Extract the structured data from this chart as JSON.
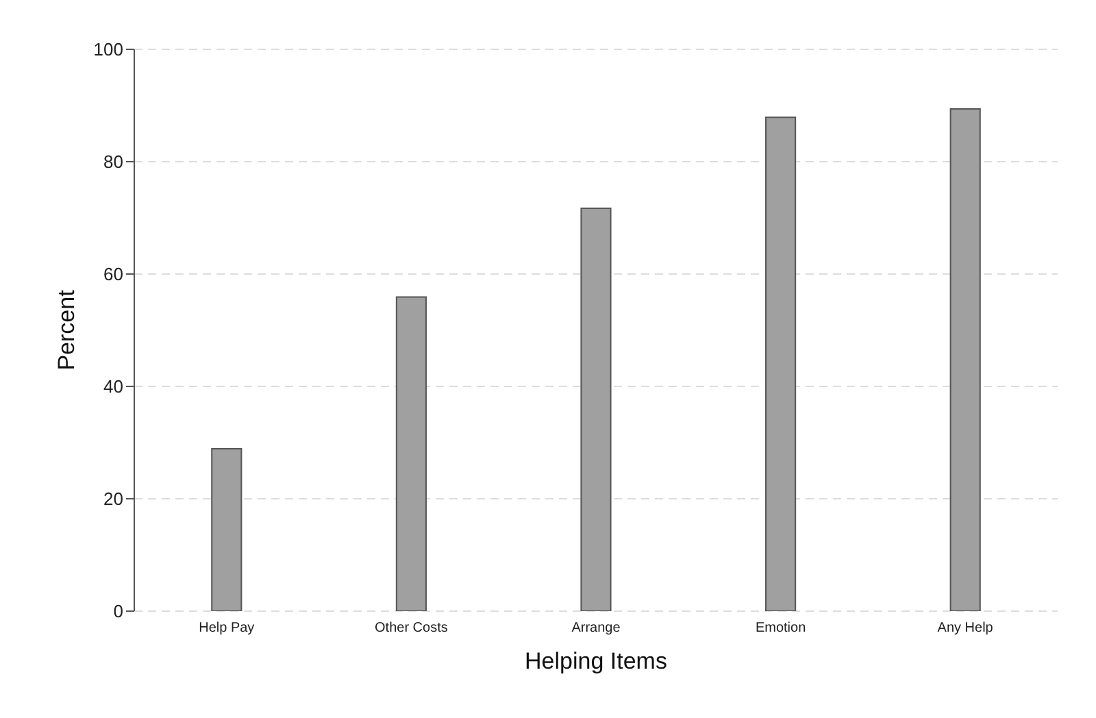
{
  "chart_data": {
    "type": "bar",
    "xlabel": "Helping Items",
    "ylabel": "Percent",
    "categories": [
      "Help Pay",
      "Other Costs",
      "Arrange",
      "Emotion",
      "Any Help"
    ],
    "values": [
      28.9,
      55.9,
      71.7,
      87.9,
      89.4
    ],
    "color": "#a0a0a0",
    "ylim": [
      0,
      100
    ],
    "yticks": [
      0,
      20,
      40,
      60,
      80,
      100
    ],
    "grid": "y"
  }
}
